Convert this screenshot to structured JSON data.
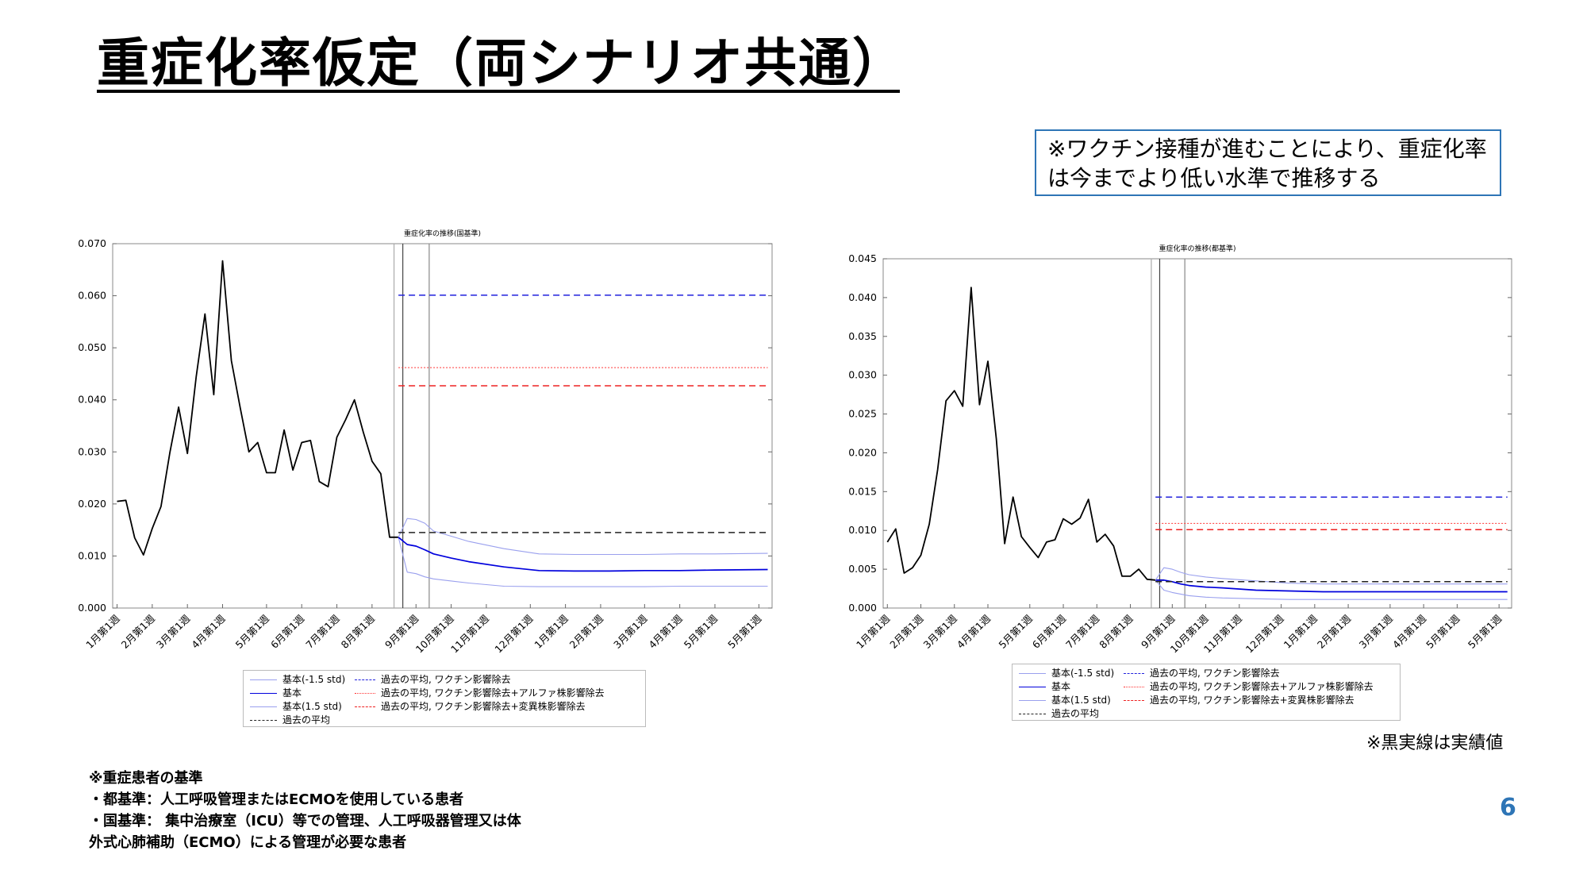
{
  "page": {
    "title": "重症化率仮定（両シナリオ共通）",
    "note": "※ワクチン接種が進むことにより、重症化率は今までより低い水準で推移する",
    "actual_note": "※黒実線は実績値",
    "criteria": [
      "※重症患者の基準",
      "・都基準：人工呼吸管理またはECMOを使用している患者",
      "・国基準： 集中治療室（ICU）等での管理、人工呼吸器管理又は体",
      "外式心肺補助（ECMO）による管理が必要な患者"
    ],
    "page_number": "6"
  },
  "colors": {
    "accent": "#2e75b6",
    "actual": "#000000",
    "base": "#0000dd",
    "band": "#9aa0ee",
    "avg_vaccine": "#2222dd",
    "avg_alpha": "#ff3333",
    "avg_variant": "#ee2222",
    "avg": "#222222"
  },
  "legend_items": [
    {
      "label": "基本(-1.5 std)",
      "color": "#9aa0ee",
      "dash": "",
      "width": 1
    },
    {
      "label": "過去の平均, ワクチン影響除去",
      "color": "#2222dd",
      "dash": "8,5",
      "width": 1.5
    },
    {
      "label": "基本",
      "color": "#0000dd",
      "dash": "",
      "width": 1.6
    },
    {
      "label": "過去の平均, ワクチン影響除去+アルファ株影響除去",
      "color": "#ff3333",
      "dash": "2,2",
      "width": 1
    },
    {
      "label": "基本(1.5 std)",
      "color": "#9aa0ee",
      "dash": "",
      "width": 1
    },
    {
      "label": "過去の平均, ワクチン影響除去+変異株影響除去",
      "color": "#ee2222",
      "dash": "8,5",
      "width": 1.5
    },
    {
      "label": "過去の平均",
      "color": "#222222",
      "dash": "8,5",
      "width": 1.5
    }
  ],
  "chart_data": [
    {
      "type": "line",
      "title": "重症化率の推移(国基準)",
      "xlabel": "",
      "ylabel": "",
      "grid": false,
      "legend": "below",
      "x_count": 75,
      "ylim": [
        0,
        0.07
      ],
      "yticks": [
        0,
        0.01,
        0.02,
        0.03,
        0.04,
        0.05,
        0.06,
        0.07
      ],
      "ytick_labels": [
        "0.000",
        "0.010",
        "0.020",
        "0.030",
        "0.040",
        "0.050",
        "0.060",
        "0.070"
      ],
      "xticks": [
        0,
        4,
        8,
        12,
        17,
        21,
        25,
        29,
        34,
        38,
        42,
        47,
        51,
        55,
        60,
        64,
        68,
        73
      ],
      "xtick_labels": [
        "1月第1週",
        "2月第1週",
        "3月第1週",
        "4月第1週",
        "5月第1週",
        "6月第1週",
        "7月第1週",
        "8月第1週",
        "9月第1週",
        "10月第1週",
        "11月第1週",
        "12月第1週",
        "1月第1週",
        "2月第1週",
        "3月第1週",
        "4月第1週",
        "5月第1週",
        "5月第1週"
      ],
      "vlines": [
        {
          "x": 31.5,
          "color": "#aaaaaa"
        },
        {
          "x": 32.5,
          "color": "#444444"
        },
        {
          "x": 35.5,
          "color": "#888888"
        }
      ],
      "series": [
        {
          "role": "actual",
          "x": [
            0,
            1,
            2,
            3,
            4,
            5,
            6,
            7,
            8,
            9,
            10,
            11,
            12,
            13,
            14,
            15,
            16,
            17,
            18,
            19,
            20,
            21,
            22,
            23,
            24,
            25,
            26,
            27,
            28,
            29,
            30,
            31,
            32
          ],
          "values": [
            0.0205,
            0.0207,
            0.0135,
            0.0102,
            0.0153,
            0.0195,
            0.0298,
            0.0386,
            0.0297,
            0.0445,
            0.0565,
            0.041,
            0.0667,
            0.0475,
            0.0385,
            0.03,
            0.0318,
            0.026,
            0.026,
            0.0342,
            0.0265,
            0.0318,
            0.0322,
            0.0243,
            0.0233,
            0.0328,
            0.0362,
            0.04,
            0.0338,
            0.0282,
            0.0258,
            0.0136,
            0.0136
          ]
        },
        {
          "role": "band_low",
          "x": [
            32,
            33,
            34,
            35,
            36,
            38,
            40,
            44,
            48,
            52,
            56,
            60,
            64,
            68,
            74
          ],
          "values": [
            0.0136,
            0.0069,
            0.0066,
            0.006,
            0.0056,
            0.0052,
            0.0048,
            0.0042,
            0.0041,
            0.0041,
            0.0041,
            0.0041,
            0.0042,
            0.0042,
            0.0042
          ]
        },
        {
          "role": "base",
          "x": [
            32,
            33,
            34,
            35,
            36,
            38,
            40,
            44,
            48,
            52,
            56,
            60,
            64,
            68,
            74
          ],
          "values": [
            0.0136,
            0.0122,
            0.0119,
            0.0112,
            0.0104,
            0.0096,
            0.0089,
            0.0079,
            0.0072,
            0.0071,
            0.0071,
            0.0072,
            0.0072,
            0.0073,
            0.0074
          ]
        },
        {
          "role": "band_high",
          "x": [
            32,
            33,
            34,
            35,
            36,
            38,
            40,
            44,
            48,
            52,
            56,
            60,
            64,
            68,
            74
          ],
          "values": [
            0.0136,
            0.0172,
            0.017,
            0.0163,
            0.0148,
            0.0138,
            0.0128,
            0.0114,
            0.0104,
            0.0103,
            0.0103,
            0.0103,
            0.0104,
            0.0104,
            0.0105
          ]
        },
        {
          "role": "avg_vaccine",
          "x": [
            32,
            74
          ],
          "values": [
            0.0601,
            0.0601
          ]
        },
        {
          "role": "avg_alpha",
          "x": [
            32,
            74
          ],
          "values": [
            0.0462,
            0.0462
          ]
        },
        {
          "role": "avg_variant",
          "x": [
            32,
            74
          ],
          "values": [
            0.0427,
            0.0427
          ]
        },
        {
          "role": "avg",
          "x": [
            32,
            74
          ],
          "values": [
            0.0145,
            0.0145
          ]
        }
      ]
    },
    {
      "type": "line",
      "title": "重症化率の推移(都基準)",
      "xlabel": "",
      "ylabel": "",
      "grid": false,
      "legend": "below",
      "x_count": 75,
      "ylim": [
        0,
        0.045
      ],
      "yticks": [
        0,
        0.005,
        0.01,
        0.015,
        0.02,
        0.025,
        0.03,
        0.035,
        0.04,
        0.045
      ],
      "ytick_labels": [
        "0.000",
        "0.005",
        "0.010",
        "0.015",
        "0.020",
        "0.025",
        "0.030",
        "0.035",
        "0.040",
        "0.045"
      ],
      "xticks": [
        0,
        4,
        8,
        12,
        17,
        21,
        25,
        29,
        34,
        38,
        42,
        47,
        51,
        55,
        60,
        64,
        68,
        73
      ],
      "xtick_labels": [
        "1月第1週",
        "2月第1週",
        "3月第1週",
        "4月第1週",
        "5月第1週",
        "6月第1週",
        "7月第1週",
        "8月第1週",
        "9月第1週",
        "10月第1週",
        "11月第1週",
        "12月第1週",
        "1月第1週",
        "2月第1週",
        "3月第1週",
        "4月第1週",
        "5月第1週",
        "5月第1週"
      ],
      "vlines": [
        {
          "x": 31.5,
          "color": "#aaaaaa"
        },
        {
          "x": 32.5,
          "color": "#444444"
        },
        {
          "x": 35.5,
          "color": "#888888"
        }
      ],
      "series": [
        {
          "role": "actual",
          "x": [
            0,
            1,
            2,
            3,
            4,
            5,
            6,
            7,
            8,
            9,
            10,
            11,
            12,
            13,
            14,
            15,
            16,
            17,
            18,
            19,
            20,
            21,
            22,
            23,
            24,
            25,
            26,
            27,
            28,
            29,
            30,
            31,
            32,
            33
          ],
          "values": [
            0.0085,
            0.0102,
            0.0045,
            0.0052,
            0.0068,
            0.0108,
            0.0178,
            0.0267,
            0.028,
            0.026,
            0.0413,
            0.0262,
            0.0318,
            0.0218,
            0.0083,
            0.0143,
            0.0092,
            0.0078,
            0.0065,
            0.0085,
            0.0088,
            0.0115,
            0.0108,
            0.0116,
            0.014,
            0.0085,
            0.0095,
            0.008,
            0.0041,
            0.0041,
            0.005,
            0.0037,
            0.0036,
            0.0036
          ]
        },
        {
          "role": "band_low",
          "x": [
            32,
            33,
            34,
            35,
            36,
            38,
            40,
            44,
            48,
            52,
            56,
            60,
            64,
            68,
            74
          ],
          "values": [
            0.0036,
            0.0023,
            0.002,
            0.0018,
            0.0016,
            0.0014,
            0.0013,
            0.0012,
            0.0011,
            0.0011,
            0.0011,
            0.0011,
            0.0011,
            0.0011,
            0.0011
          ]
        },
        {
          "role": "base",
          "x": [
            32,
            33,
            34,
            35,
            36,
            38,
            40,
            44,
            48,
            52,
            56,
            60,
            64,
            68,
            74
          ],
          "values": [
            0.0036,
            0.0036,
            0.0034,
            0.0031,
            0.0029,
            0.0027,
            0.0026,
            0.0023,
            0.0022,
            0.0021,
            0.0021,
            0.0021,
            0.0021,
            0.0021,
            0.0021
          ]
        },
        {
          "role": "band_high",
          "x": [
            32,
            33,
            34,
            35,
            36,
            38,
            40,
            44,
            48,
            52,
            56,
            60,
            64,
            68,
            74
          ],
          "values": [
            0.0036,
            0.0052,
            0.005,
            0.0046,
            0.0043,
            0.004,
            0.0038,
            0.0035,
            0.0032,
            0.0031,
            0.0031,
            0.0031,
            0.0031,
            0.0031,
            0.0031
          ]
        },
        {
          "role": "avg_vaccine",
          "x": [
            32,
            74
          ],
          "values": [
            0.0143,
            0.0143
          ]
        },
        {
          "role": "avg_alpha",
          "x": [
            32,
            74
          ],
          "values": [
            0.0109,
            0.0109
          ]
        },
        {
          "role": "avg_variant",
          "x": [
            32,
            74
          ],
          "values": [
            0.0101,
            0.0101
          ]
        },
        {
          "role": "avg",
          "x": [
            32,
            74
          ],
          "values": [
            0.0034,
            0.0034
          ]
        }
      ]
    }
  ]
}
